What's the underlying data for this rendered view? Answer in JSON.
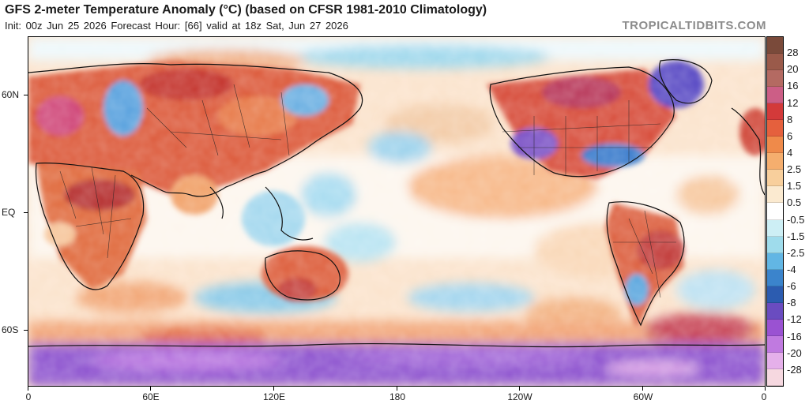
{
  "title": "GFS 2-meter Temperature Anomaly (°C) (based on CFSR 1981-2010 Climatology)",
  "subtitle": "Init: 00z Jun 25 2026   Forecast Hour: [66]   valid at 18z Sat, Jun 27 2026",
  "brand": "TROPICALTIDBITS.COM",
  "y_axis": {
    "labels": [
      "60N",
      "EQ",
      "60S"
    ]
  },
  "x_axis": {
    "labels": [
      "0",
      "60E",
      "120E",
      "180",
      "120W",
      "60W",
      "0"
    ]
  },
  "colorbar": {
    "labels": [
      "28",
      "20",
      "16",
      "12",
      "8",
      "6",
      "4",
      "2.5",
      "1.5",
      "0.5",
      "-0.5",
      "-1.5",
      "-2.5",
      "-4",
      "-6",
      "-8",
      "-12",
      "-16",
      "-20",
      "-28"
    ],
    "colors": [
      "#7a4a3a",
      "#9a5a4a",
      "#b46a62",
      "#cc5e86",
      "#d33a3a",
      "#e5603d",
      "#ef8a4a",
      "#f5ae6e",
      "#f8cf9c",
      "#fbead0",
      "#ffffff",
      "#cdeff5",
      "#9fdcec",
      "#62b6e4",
      "#3b84cc",
      "#2c5cb0",
      "#6a4cc0",
      "#9a52d2",
      "#c07ae0",
      "#e5b0ea",
      "#f6d8e0"
    ]
  }
}
